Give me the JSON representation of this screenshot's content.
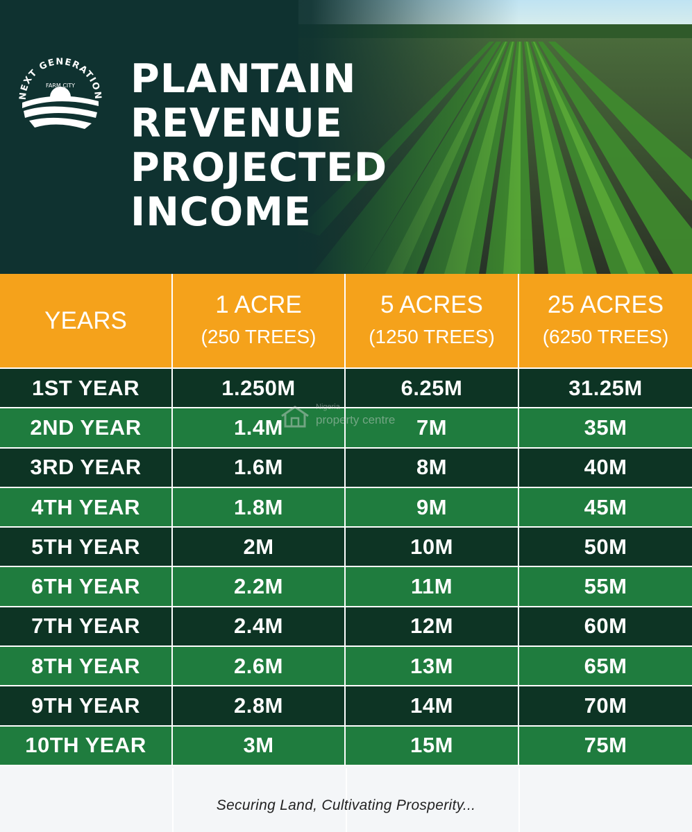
{
  "logo": {
    "arc_text": "NEXT GENERATION",
    "sub_text": "FARM CITY"
  },
  "title": {
    "lines": [
      "PLANTAIN",
      "REVENUE",
      "PROJECTED",
      "INCOME"
    ]
  },
  "table": {
    "headers": [
      {
        "main": "YEARS",
        "sub": ""
      },
      {
        "main": "1 ACRE",
        "sub": "(250 TREES)"
      },
      {
        "main": "5 ACRES",
        "sub": "(1250 TREES)"
      },
      {
        "main": "25 ACRES",
        "sub": "(6250 TREES)"
      }
    ],
    "rows": [
      [
        "1ST YEAR",
        "1.250M",
        "6.25M",
        "31.25M"
      ],
      [
        "2ND YEAR",
        "1.4M",
        "7M",
        "35M"
      ],
      [
        "3RD YEAR",
        "1.6M",
        "8M",
        "40M"
      ],
      [
        "4TH YEAR",
        "1.8M",
        "9M",
        "45M"
      ],
      [
        "5TH YEAR",
        "2M",
        "10M",
        "50M"
      ],
      [
        "6TH YEAR",
        "2.2M",
        "11M",
        "55M"
      ],
      [
        "7TH YEAR",
        "2.4M",
        "12M",
        "60M"
      ],
      [
        "8TH YEAR",
        "2.6M",
        "13M",
        "65M"
      ],
      [
        "9TH YEAR",
        "2.8M",
        "14M",
        "70M"
      ],
      [
        "10TH YEAR",
        "3M",
        "15M",
        "75M"
      ]
    ]
  },
  "footer": {
    "tagline": "Securing Land, Cultivating Prosperity..."
  },
  "watermark": {
    "line1": "Nigeria",
    "line2": "property centre"
  },
  "colors": {
    "header_bg": "#0f3230",
    "orange": "#f5a21b",
    "dark_row": "#0d3424",
    "light_row": "#1f7c3e"
  }
}
